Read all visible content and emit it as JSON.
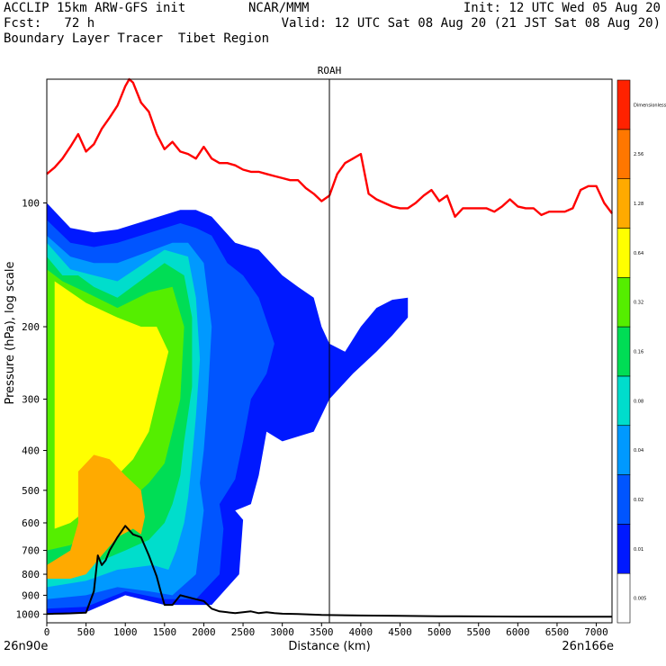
{
  "header": {
    "line1_left": "ACCLIP 15km ARW-GFS init",
    "line1_center": "NCAR/MMM",
    "line1_right": "Init: 12 UTC Wed 05 Aug 20",
    "line2_left": "Fcst:   72 h",
    "line2_right": "Valid: 12 UTC Sat 08 Aug 20 (21 JST Sat 08 Aug 20)",
    "line3_left": "Boundary Layer Tracer  Tibet Region"
  },
  "chart_data": {
    "type": "cross-section",
    "marker_label": "ROAH",
    "marker_x_km": 3600,
    "xlabel": "Distance (km)",
    "ylabel": "Pressure (hPa), log scale",
    "x_start_label": "26n90e",
    "x_end_label": "26n166e",
    "xlim": [
      0,
      7200
    ],
    "ylim_hpa": [
      1050,
      50
    ],
    "y_scale": "log",
    "x_ticks": [
      0,
      500,
      1000,
      1500,
      2000,
      2500,
      3000,
      3500,
      4000,
      4500,
      5000,
      5500,
      6000,
      6500,
      7000
    ],
    "y_ticks": [
      100,
      200,
      300,
      400,
      500,
      600,
      700,
      800,
      900,
      1000
    ],
    "colorbar": {
      "levels": [
        "0.005",
        "0.01",
        "0.02",
        "0.04",
        "0.08",
        "0.16",
        "0.32",
        "0.64",
        "1.28",
        "2.56",
        "Dimensionless"
      ],
      "colors": [
        "#ffffff",
        "#0019ff",
        "#0055ff",
        "#0099ff",
        "#00ddcc",
        "#00dd55",
        "#55ee00",
        "#ffff00",
        "#ffaa00",
        "#ff7700",
        "#ff2200"
      ]
    },
    "tropopause_line": {
      "color": "#ff0000",
      "x": [
        0,
        100,
        200,
        300,
        400,
        500,
        600,
        700,
        800,
        900,
        1000,
        1050,
        1100,
        1200,
        1300,
        1400,
        1500,
        1600,
        1700,
        1800,
        1900,
        2000,
        2100,
        2200,
        2300,
        2400,
        2500,
        2600,
        2700,
        2800,
        2900,
        3000,
        3100,
        3200,
        3300,
        3400,
        3500,
        3600,
        3700,
        3800,
        3900,
        4000,
        4100,
        4200,
        4300,
        4400,
        4500,
        4600,
        4700,
        4800,
        4900,
        5000,
        5100,
        5200,
        5300,
        5400,
        5500,
        5600,
        5700,
        5800,
        5900,
        6000,
        6100,
        6200,
        6300,
        6400,
        6500,
        6600,
        6700,
        6800,
        6900,
        7000,
        7100,
        7200
      ],
      "p": [
        85,
        82,
        78,
        73,
        68,
        75,
        72,
        66,
        62,
        58,
        52,
        50,
        51,
        57,
        60,
        68,
        74,
        71,
        75,
        76,
        78,
        73,
        78,
        80,
        80,
        81,
        83,
        84,
        84,
        85,
        86,
        87,
        88,
        88,
        92,
        95,
        99,
        96,
        85,
        80,
        78,
        76,
        95,
        98,
        100,
        102,
        103,
        103,
        100,
        96,
        93,
        99,
        96,
        108,
        103,
        103,
        103,
        103,
        105,
        102,
        98,
        102,
        103,
        103,
        107,
        105,
        105,
        105,
        103,
        93,
        91,
        91,
        100,
        106
      ]
    },
    "terrain_line": {
      "color": "#000000",
      "x": [
        0,
        100,
        200,
        300,
        400,
        500,
        600,
        650,
        700,
        750,
        800,
        900,
        1000,
        1100,
        1200,
        1300,
        1400,
        1450,
        1500,
        1600,
        1700,
        1800,
        1900,
        2000,
        2100,
        2200,
        2300,
        2400,
        2500,
        2600,
        2700,
        2800,
        2900,
        3000,
        3200,
        3500,
        4000,
        4500,
        5000,
        6000,
        7000,
        7200
      ],
      "p": [
        1000,
        998,
        997,
        996,
        994,
        992,
        880,
        720,
        760,
        740,
        700,
        650,
        610,
        640,
        650,
        720,
        810,
        880,
        950,
        950,
        900,
        910,
        920,
        930,
        970,
        985,
        990,
        995,
        990,
        985,
        995,
        990,
        995,
        998,
        1000,
        1005,
        1008,
        1010,
        1012,
        1014,
        1015,
        1015
      ]
    },
    "tracer_field": {
      "description_units": "Dimensionless",
      "bands": [
        {
          "level": "0.01",
          "color": "#0019ff",
          "left": [
            [
              0,
              100
            ],
            [
              300,
              115
            ],
            [
              600,
              118
            ],
            [
              900,
              116
            ],
            [
              1700,
              104
            ],
            [
              1900,
              104
            ],
            [
              2100,
              108
            ],
            [
              2400,
              125
            ],
            [
              2700,
              130
            ],
            [
              3000,
              150
            ],
            [
              3200,
              160
            ],
            [
              3400,
              170
            ],
            [
              3500,
              200
            ],
            [
              3600,
              220
            ],
            [
              3800,
              230
            ],
            [
              4000,
              200
            ],
            [
              4200,
              180
            ],
            [
              4400,
              172
            ],
            [
              4600,
              170
            ],
            [
              4600,
              190
            ],
            [
              4400,
              210
            ],
            [
              4200,
              230
            ],
            [
              3900,
              260
            ],
            [
              3600,
              300
            ],
            [
              3400,
              360
            ],
            [
              3000,
              380
            ],
            [
              2800,
              360
            ],
            [
              2700,
              460
            ],
            [
              2600,
              540
            ],
            [
              2500,
              550
            ],
            [
              2400,
              560
            ],
            [
              2500,
              590
            ],
            [
              2450,
              800
            ],
            [
              2100,
              950
            ],
            [
              1800,
              950
            ],
            [
              1500,
              950
            ],
            [
              1000,
              900
            ],
            [
              500,
              990
            ],
            [
              0,
              1000
            ]
          ]
        },
        {
          "level": "0.02",
          "color": "#0055ff",
          "left": [
            [
              0,
              110
            ],
            [
              300,
              125
            ],
            [
              600,
              128
            ],
            [
              900,
              125
            ],
            [
              1700,
              112
            ],
            [
              1900,
              115
            ],
            [
              2100,
              120
            ],
            [
              2300,
              140
            ],
            [
              2500,
              150
            ],
            [
              2700,
              170
            ],
            [
              2900,
              220
            ],
            [
              2800,
              260
            ],
            [
              2600,
              300
            ],
            [
              2500,
              380
            ],
            [
              2400,
              470
            ],
            [
              2200,
              540
            ],
            [
              2250,
              620
            ],
            [
              2200,
              800
            ],
            [
              1900,
              920
            ],
            [
              1500,
              920
            ],
            [
              1000,
              880
            ],
            [
              500,
              960
            ],
            [
              0,
              970
            ]
          ]
        },
        {
          "level": "0.04",
          "color": "#0099ff",
          "left": [
            [
              0,
              120
            ],
            [
              300,
              135
            ],
            [
              600,
              140
            ],
            [
              900,
              140
            ],
            [
              1600,
              125
            ],
            [
              1800,
              125
            ],
            [
              2000,
              140
            ],
            [
              2100,
              200
            ],
            [
              2050,
              300
            ],
            [
              2000,
              400
            ],
            [
              1950,
              480
            ],
            [
              2000,
              560
            ],
            [
              1900,
              800
            ],
            [
              1600,
              900
            ],
            [
              1300,
              880
            ],
            [
              900,
              860
            ],
            [
              500,
              900
            ],
            [
              0,
              920
            ]
          ]
        },
        {
          "level": "0.08",
          "color": "#00ddcc",
          "left": [
            [
              0,
              125
            ],
            [
              300,
              145
            ],
            [
              600,
              150
            ],
            [
              900,
              155
            ],
            [
              1500,
              130
            ],
            [
              1800,
              135
            ],
            [
              1900,
              170
            ],
            [
              1950,
              240
            ],
            [
              1900,
              330
            ],
            [
              1850,
              420
            ],
            [
              1800,
              520
            ],
            [
              1750,
              600
            ],
            [
              1650,
              700
            ],
            [
              1550,
              780
            ],
            [
              1350,
              760
            ],
            [
              900,
              780
            ],
            [
              500,
              830
            ],
            [
              0,
              860
            ]
          ]
        },
        {
          "level": "0.16",
          "color": "#00dd55",
          "left": [
            [
              0,
              135
            ],
            [
              200,
              150
            ],
            [
              400,
              150
            ],
            [
              600,
              160
            ],
            [
              900,
              170
            ],
            [
              1500,
              140
            ],
            [
              1750,
              150
            ],
            [
              1850,
              190
            ],
            [
              1850,
              280
            ],
            [
              1750,
              380
            ],
            [
              1700,
              460
            ],
            [
              1600,
              540
            ],
            [
              1500,
              600
            ],
            [
              1300,
              660
            ],
            [
              1000,
              700
            ],
            [
              700,
              740
            ],
            [
              400,
              780
            ],
            [
              0,
              800
            ]
          ]
        },
        {
          "level": "0.32",
          "color": "#55ee00",
          "left": [
            [
              0,
              145
            ],
            [
              200,
              155
            ],
            [
              500,
              165
            ],
            [
              900,
              180
            ],
            [
              1300,
              165
            ],
            [
              1600,
              160
            ],
            [
              1750,
              200
            ],
            [
              1700,
              300
            ],
            [
              1600,
              360
            ],
            [
              1500,
              430
            ],
            [
              1300,
              480
            ],
            [
              1100,
              520
            ],
            [
              900,
              560
            ],
            [
              600,
              620
            ],
            [
              300,
              680
            ],
            [
              0,
              700
            ]
          ]
        },
        {
          "level": "0.64",
          "color": "#ffff00",
          "left": [
            [
              100,
              155
            ],
            [
              500,
              175
            ],
            [
              900,
              190
            ],
            [
              1200,
              200
            ],
            [
              1400,
              200
            ],
            [
              1550,
              230
            ],
            [
              1400,
              300
            ],
            [
              1300,
              360
            ],
            [
              1100,
              420
            ],
            [
              900,
              460
            ],
            [
              700,
              500
            ],
            [
              500,
              560
            ],
            [
              300,
              600
            ],
            [
              100,
              620
            ],
            [
              100,
              300
            ]
          ]
        },
        {
          "level": "1.28",
          "color": "#ffaa00",
          "left": [
            [
              400,
              450
            ],
            [
              600,
              410
            ],
            [
              800,
              420
            ],
            [
              1000,
              460
            ],
            [
              1200,
              500
            ],
            [
              1250,
              580
            ],
            [
              1200,
              640
            ],
            [
              1100,
              620
            ],
            [
              900,
              650
            ],
            [
              700,
              720
            ],
            [
              500,
              800
            ],
            [
              300,
              820
            ],
            [
              0,
              820
            ],
            [
              0,
              760
            ],
            [
              300,
              700
            ],
            [
              400,
              600
            ]
          ]
        }
      ]
    }
  }
}
